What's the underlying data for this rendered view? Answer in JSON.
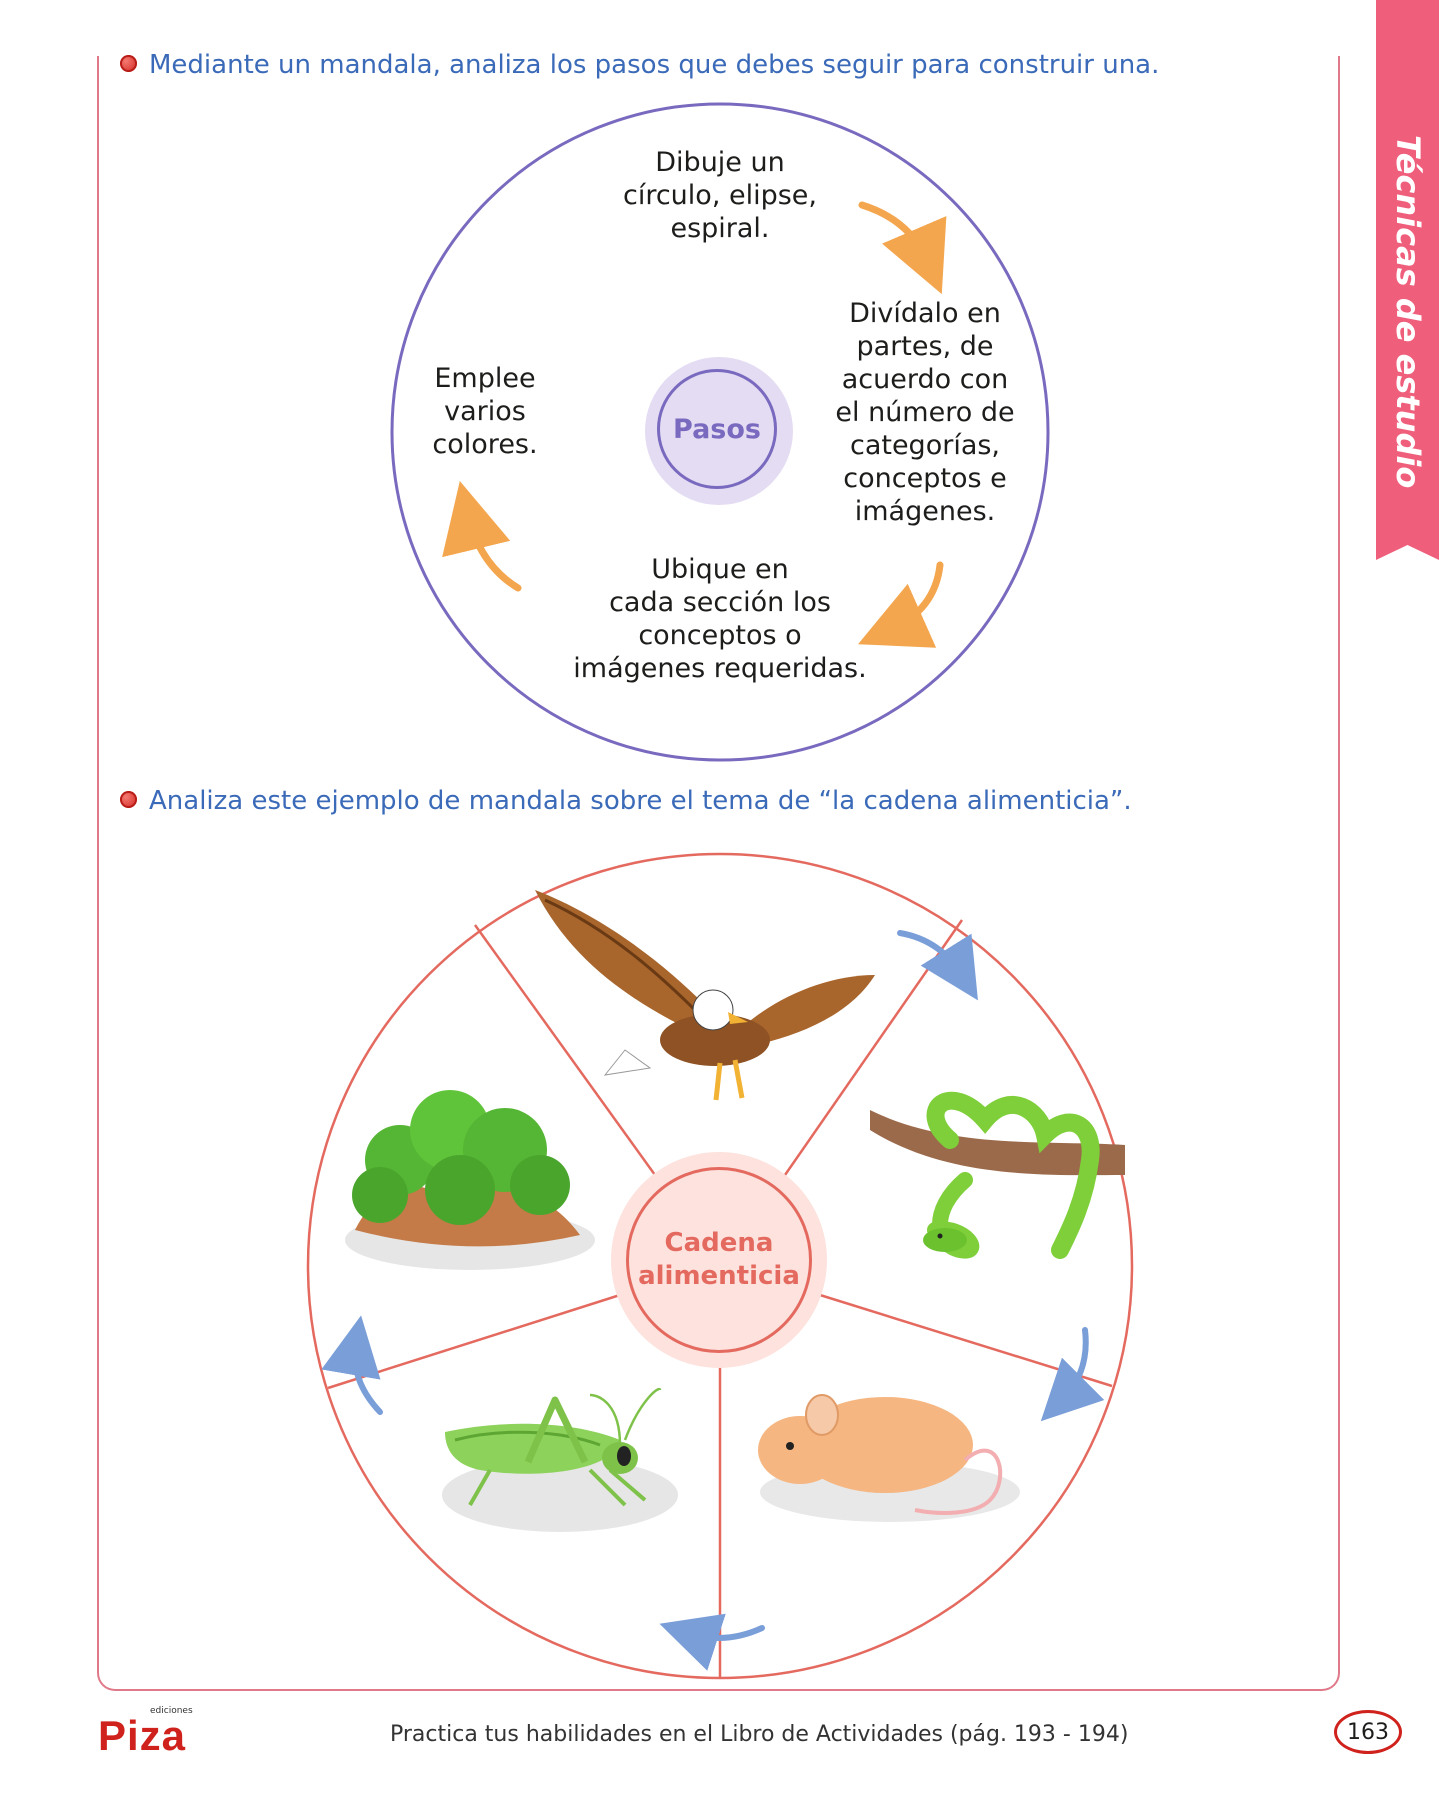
{
  "side_tab": {
    "label": "Técnicas de estudio"
  },
  "section1": {
    "instruction": "Mediante un mandala, analiza los pasos que debes seguir para construir una.",
    "center": "Pasos",
    "steps": [
      "Dibuje un círculo, elipse, espiral.",
      "Divídalo en partes, de acuerdo con el número de categorías, conceptos e imágenes.",
      "Ubique en cada sección los conceptos o imágenes requeridas.",
      "Emplee varios colores."
    ],
    "step_lines": {
      "top": [
        "Dibuje un",
        "círculo, elipse,",
        "espiral."
      ],
      "right": [
        "Divídalo en",
        "partes, de",
        "acuerdo con",
        "el número de",
        "categorías,",
        "conceptos e",
        "imágenes."
      ],
      "bottom": [
        "Ubique en",
        "cada sección los",
        "conceptos o",
        "imágenes requeridas."
      ],
      "left": [
        "Emplee",
        "varios",
        "colores."
      ]
    }
  },
  "section2": {
    "instruction": "Analiza este ejemplo de mandala sobre el tema de “la cadena alimenticia”.",
    "center_line1": "Cadena",
    "center_line2": "alimenticia",
    "sections": [
      "eagle-icon",
      "snake-icon",
      "mouse-icon",
      "grasshopper-icon",
      "bush-icon"
    ]
  },
  "footer": {
    "text": "Practica tus habilidades en el Libro de Actividades (pág. 193 - 194)",
    "page_number": "163",
    "logo_small": "ediciones",
    "logo_big": "Piza"
  },
  "colors": {
    "accent_pink": "#ef5f7c",
    "instruction_blue": "#3a6ab8",
    "circle_purple": "#7a6abf",
    "wheel_red": "#e4695f",
    "arrow_orange": "#f4a64f",
    "arrow_blue": "#7a9ed8"
  }
}
